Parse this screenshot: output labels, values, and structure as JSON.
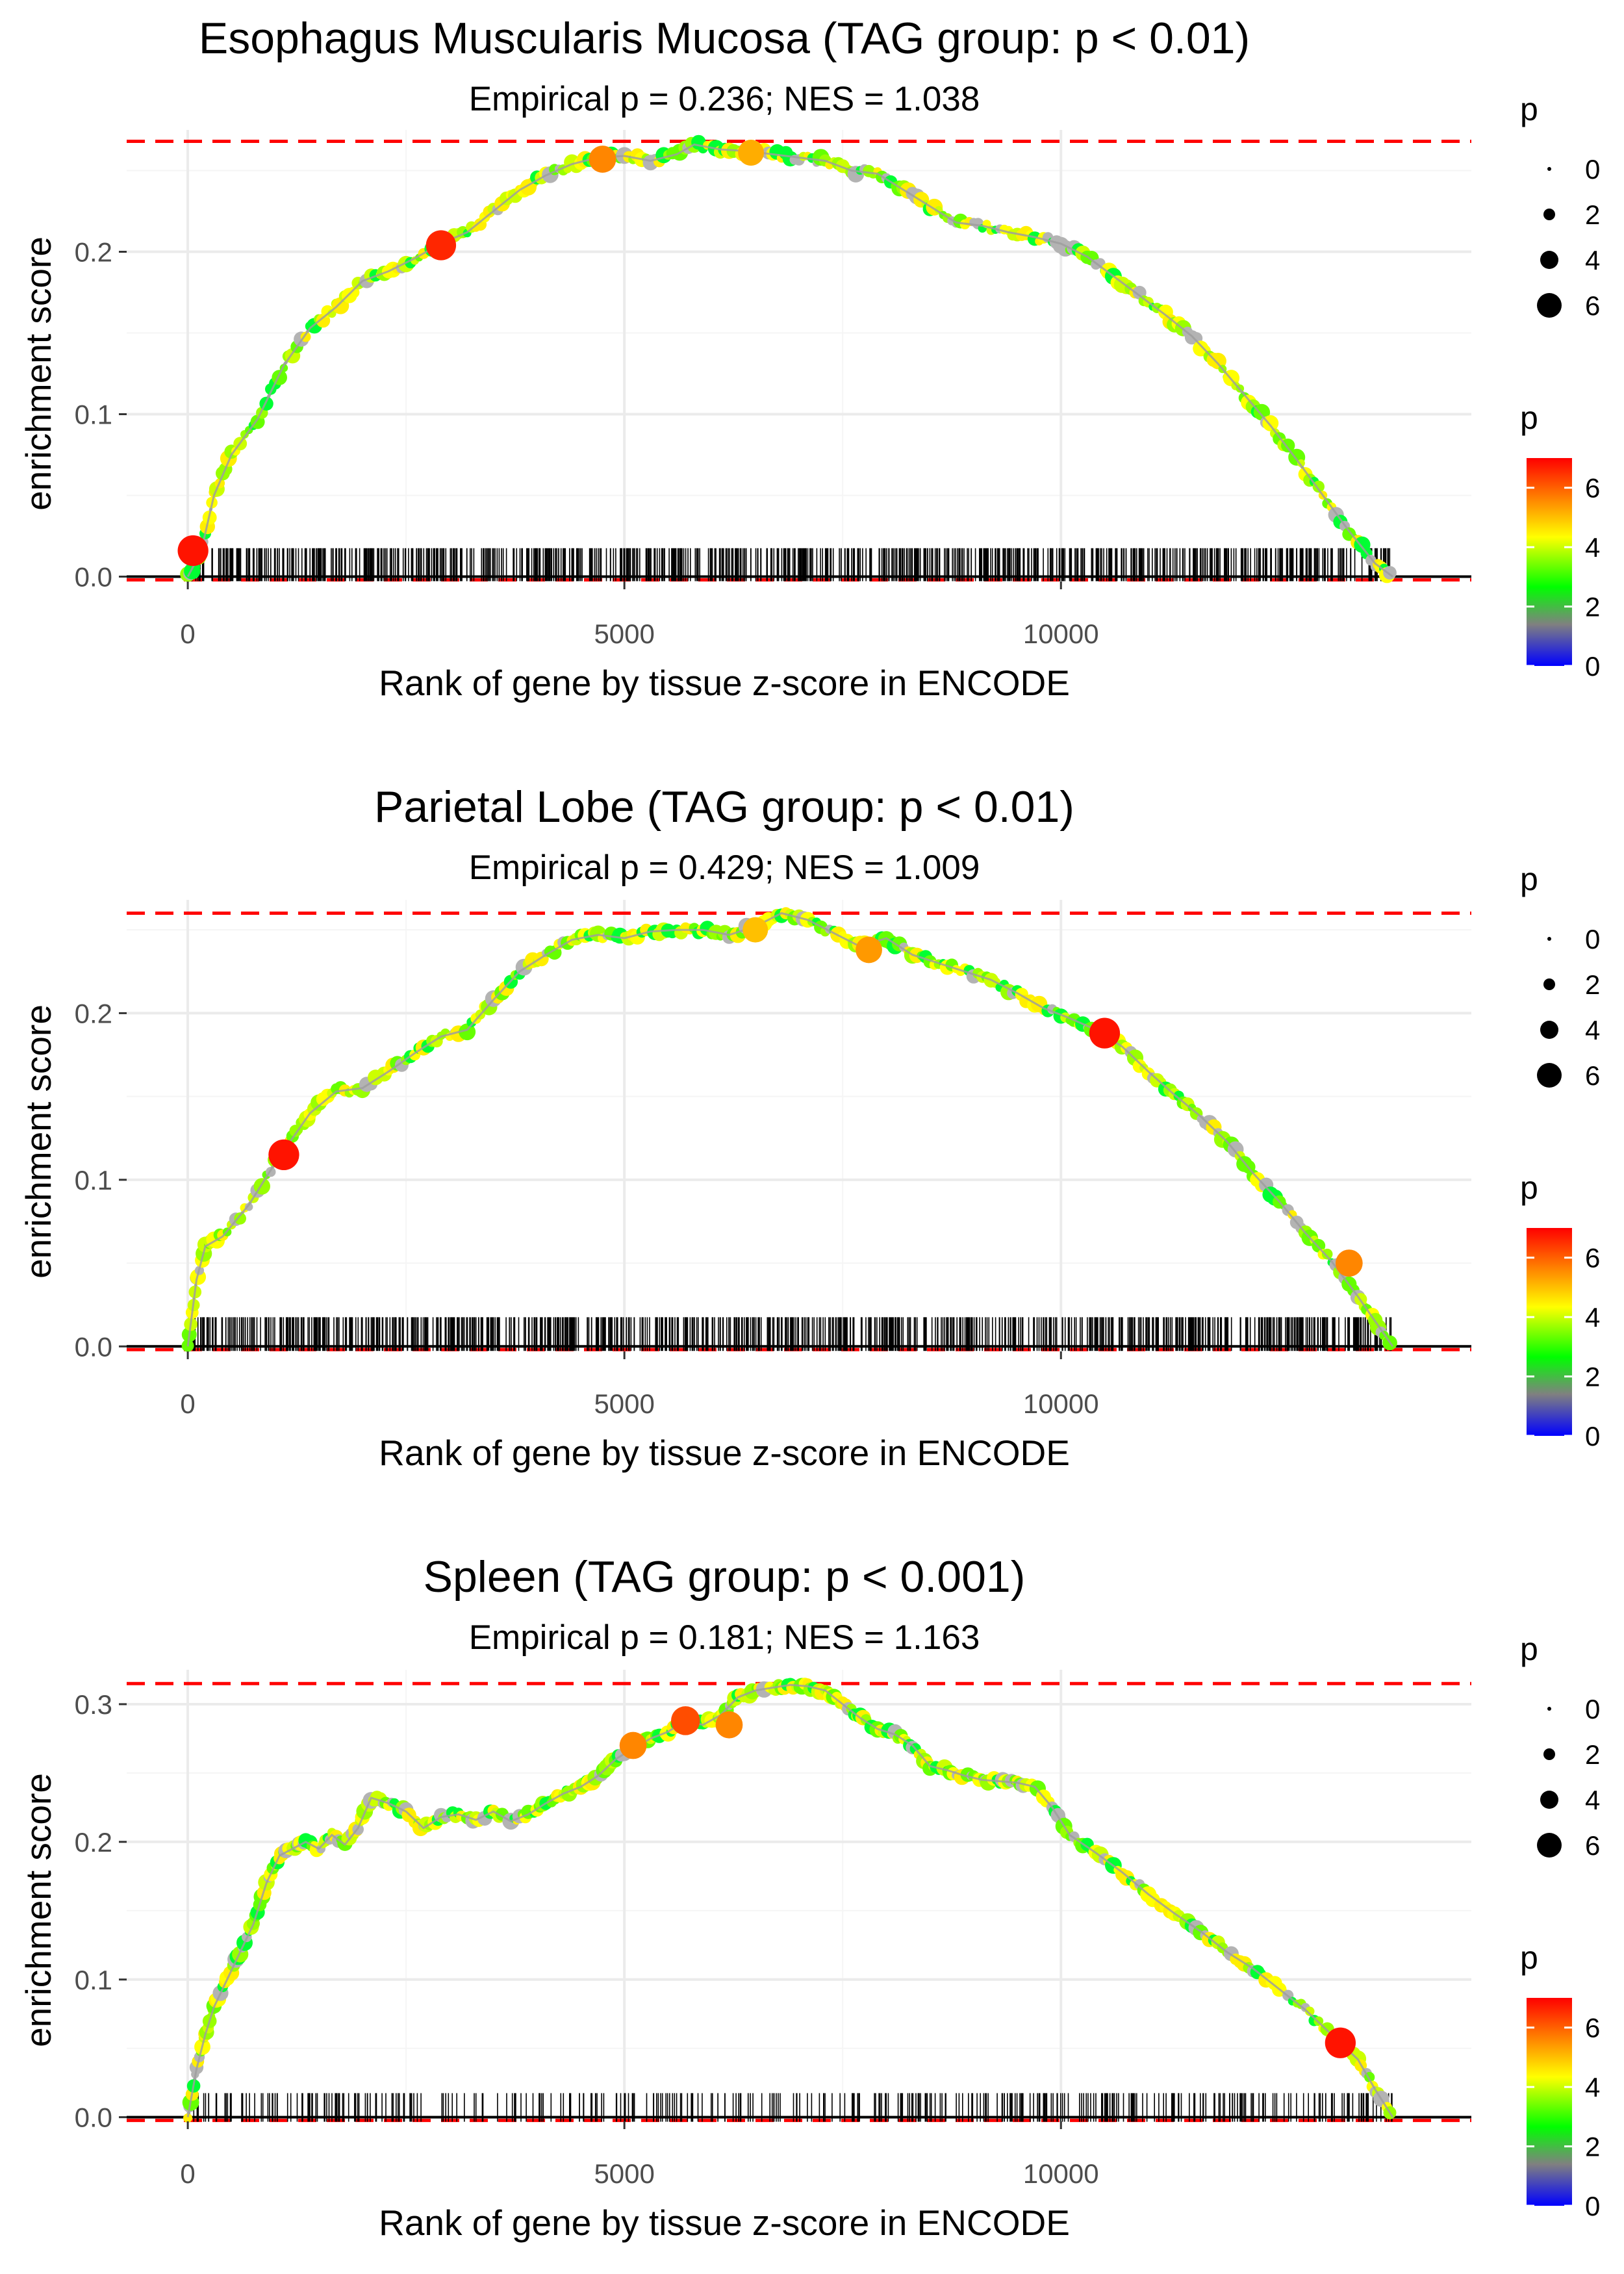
{
  "colors": {
    "reference_line": "#ff0000",
    "zero_line": "#000000",
    "grid": "#ebebeb",
    "gradient": [
      "#0000ff",
      "#808080",
      "#00ff00",
      "#ffff00",
      "#ff0000"
    ]
  },
  "shared": {
    "xlabel": "Rank of gene by tissue z-score in ENCODE",
    "ylabel": "enrichment score",
    "x_ticks": [
      0,
      5000,
      10000
    ],
    "xlim": [
      -700,
      14700
    ],
    "size_legend": {
      "title": "p",
      "labels": [
        "0",
        "2",
        "4",
        "6"
      ]
    },
    "color_legend": {
      "title": "p",
      "labels": [
        "0",
        "2",
        "4",
        "6"
      ],
      "range": [
        0,
        7
      ]
    }
  },
  "chart_data": [
    {
      "type": "line",
      "title": "Esophagus Muscularis Mucosa (TAG group: p < 0.01)",
      "subtitle": "Empirical p = 0.236; NES = 1.038",
      "ylim": [
        -0.003,
        0.275
      ],
      "y_ticks": [
        0.0,
        0.1,
        0.2
      ],
      "y_tick_labels": [
        "0.0",
        "0.1",
        "0.2"
      ],
      "max_es": 0.268,
      "min_es": 0.0,
      "rug_density": 1.0,
      "x": [
        0,
        150,
        300,
        500,
        800,
        1100,
        1400,
        1700,
        2000,
        2300,
        2600,
        2900,
        3200,
        3500,
        3800,
        4100,
        4400,
        4700,
        5000,
        5300,
        5600,
        5800,
        6100,
        6400,
        6700,
        7000,
        7300,
        7600,
        7900,
        8200,
        8500,
        8800,
        9100,
        9400,
        9700,
        10000,
        10300,
        10600,
        10900,
        11200,
        11500,
        11800,
        12100,
        12400,
        12700,
        13000,
        13300,
        13600,
        13800
      ],
      "values": [
        0.0,
        0.015,
        0.05,
        0.075,
        0.097,
        0.13,
        0.153,
        0.166,
        0.182,
        0.188,
        0.196,
        0.205,
        0.212,
        0.225,
        0.238,
        0.247,
        0.254,
        0.258,
        0.259,
        0.256,
        0.26,
        0.266,
        0.263,
        0.262,
        0.26,
        0.258,
        0.256,
        0.25,
        0.248,
        0.238,
        0.228,
        0.218,
        0.216,
        0.212,
        0.209,
        0.205,
        0.197,
        0.185,
        0.173,
        0.161,
        0.148,
        0.131,
        0.112,
        0.093,
        0.072,
        0.05,
        0.028,
        0.008,
        0.0
      ],
      "highlights": [
        {
          "x": 60,
          "y": 0.016,
          "p": 6.8
        },
        {
          "x": 2900,
          "y": 0.204,
          "p": 6.6
        },
        {
          "x": 4750,
          "y": 0.257,
          "p": 5.6
        },
        {
          "x": 6450,
          "y": 0.261,
          "p": 5.2
        }
      ]
    },
    {
      "type": "line",
      "title": "Parietal Lobe (TAG group: p < 0.01)",
      "subtitle": "Empirical p = 0.429; NES = 1.009",
      "ylim": [
        -0.003,
        0.268
      ],
      "y_ticks": [
        0.0,
        0.1,
        0.2
      ],
      "y_tick_labels": [
        "0.0",
        "0.1",
        "0.2"
      ],
      "max_es": 0.26,
      "min_es": 0.0,
      "rug_density": 1.0,
      "x": [
        0,
        100,
        200,
        400,
        700,
        1000,
        1200,
        1400,
        1700,
        2000,
        2300,
        2600,
        2900,
        3200,
        3500,
        3800,
        4100,
        4400,
        4700,
        5000,
        5300,
        5600,
        5900,
        6200,
        6500,
        6800,
        7100,
        7400,
        7700,
        8000,
        8300,
        8600,
        8900,
        9200,
        9500,
        9800,
        10100,
        10400,
        10700,
        11000,
        11300,
        11600,
        11900,
        12200,
        12500,
        12800,
        13100,
        13400,
        13600,
        13800
      ],
      "values": [
        0.0,
        0.04,
        0.06,
        0.066,
        0.085,
        0.11,
        0.125,
        0.14,
        0.153,
        0.155,
        0.165,
        0.176,
        0.186,
        0.19,
        0.208,
        0.225,
        0.235,
        0.244,
        0.247,
        0.245,
        0.249,
        0.25,
        0.25,
        0.247,
        0.252,
        0.26,
        0.256,
        0.248,
        0.24,
        0.245,
        0.235,
        0.23,
        0.225,
        0.22,
        0.212,
        0.203,
        0.197,
        0.19,
        0.18,
        0.165,
        0.151,
        0.138,
        0.123,
        0.104,
        0.087,
        0.068,
        0.051,
        0.03,
        0.015,
        0.0
      ],
      "highlights": [
        {
          "x": 1100,
          "y": 0.115,
          "p": 6.8
        },
        {
          "x": 6500,
          "y": 0.25,
          "p": 5.0
        },
        {
          "x": 7800,
          "y": 0.238,
          "p": 5.4
        },
        {
          "x": 10500,
          "y": 0.188,
          "p": 6.8
        },
        {
          "x": 13300,
          "y": 0.05,
          "p": 5.6
        }
      ]
    },
    {
      "type": "line",
      "title": "Spleen (TAG group: p < 0.001)",
      "subtitle": "Empirical p = 0.181; NES = 1.163",
      "ylim": [
        -0.003,
        0.325
      ],
      "y_ticks": [
        0.0,
        0.1,
        0.2,
        0.3
      ],
      "y_tick_labels": [
        "0.0",
        "0.1",
        "0.2",
        "0.3"
      ],
      "max_es": 0.315,
      "min_es": 0.0,
      "rug_density": 0.45,
      "x": [
        0,
        100,
        200,
        300,
        450,
        600,
        750,
        900,
        1050,
        1200,
        1350,
        1500,
        1650,
        1800,
        1950,
        2100,
        2300,
        2500,
        2700,
        2900,
        3100,
        3300,
        3500,
        3700,
        3900,
        4100,
        4300,
        4500,
        4700,
        4900,
        5100,
        5300,
        5500,
        5700,
        5900,
        6100,
        6300,
        6500,
        6700,
        6900,
        7100,
        7300,
        7500,
        7700,
        7900,
        8100,
        8300,
        8500,
        8700,
        8900,
        9100,
        9300,
        9500,
        9700,
        9900,
        10100,
        10400,
        10700,
        11000,
        11300,
        11600,
        11900,
        12200,
        12500,
        12800,
        13100,
        13400,
        13600,
        13800
      ],
      "values": [
        0.0,
        0.035,
        0.06,
        0.08,
        0.1,
        0.12,
        0.14,
        0.17,
        0.19,
        0.195,
        0.2,
        0.195,
        0.205,
        0.198,
        0.21,
        0.232,
        0.228,
        0.222,
        0.21,
        0.218,
        0.22,
        0.216,
        0.222,
        0.215,
        0.22,
        0.228,
        0.235,
        0.24,
        0.248,
        0.26,
        0.268,
        0.275,
        0.28,
        0.288,
        0.285,
        0.292,
        0.305,
        0.31,
        0.312,
        0.314,
        0.313,
        0.31,
        0.3,
        0.29,
        0.282,
        0.278,
        0.27,
        0.255,
        0.252,
        0.248,
        0.245,
        0.244,
        0.243,
        0.24,
        0.225,
        0.205,
        0.192,
        0.178,
        0.162,
        0.148,
        0.135,
        0.12,
        0.108,
        0.093,
        0.078,
        0.06,
        0.042,
        0.02,
        0.0
      ],
      "highlights": [
        {
          "x": 5100,
          "y": 0.27,
          "p": 5.6
        },
        {
          "x": 5700,
          "y": 0.288,
          "p": 6.2
        },
        {
          "x": 6200,
          "y": 0.285,
          "p": 5.6
        },
        {
          "x": 13200,
          "y": 0.054,
          "p": 6.8
        }
      ]
    }
  ]
}
